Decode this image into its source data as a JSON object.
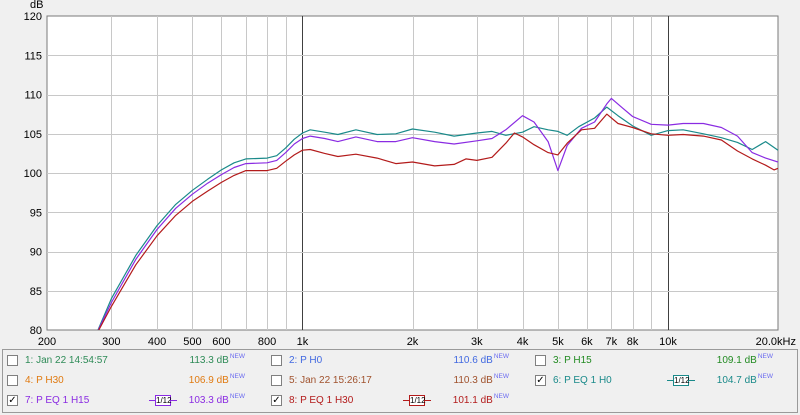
{
  "chart_data": {
    "type": "line",
    "ylabel": "dB",
    "x_scale": "log",
    "x_range": [
      200,
      20000
    ],
    "y_range": [
      80,
      120
    ],
    "grid": true,
    "x_ticks": [
      {
        "v": 200,
        "label": "200"
      },
      {
        "v": 300,
        "label": "300"
      },
      {
        "v": 400,
        "label": "400"
      },
      {
        "v": 500,
        "label": "500"
      },
      {
        "v": 600,
        "label": "600"
      },
      {
        "v": 800,
        "label": "800"
      },
      {
        "v": 1000,
        "label": "1k"
      },
      {
        "v": 2000,
        "label": "2k"
      },
      {
        "v": 3000,
        "label": "3k"
      },
      {
        "v": 4000,
        "label": "4k"
      },
      {
        "v": 5000,
        "label": "5k"
      },
      {
        "v": 6000,
        "label": "6k"
      },
      {
        "v": 7000,
        "label": "7k"
      },
      {
        "v": 8000,
        "label": "8k"
      },
      {
        "v": 10000,
        "label": "10k"
      },
      {
        "v": 20000,
        "label": "20.0kHz"
      }
    ],
    "y_ticks": [
      80,
      85,
      90,
      95,
      100,
      105,
      110,
      115,
      120
    ],
    "series": [
      {
        "name": "P EQ 1 H0",
        "color": "#1a8a8a",
        "points": [
          [
            270,
            79
          ],
          [
            300,
            84
          ],
          [
            350,
            89.5
          ],
          [
            400,
            93.3
          ],
          [
            450,
            96
          ],
          [
            500,
            97.8
          ],
          [
            550,
            99.2
          ],
          [
            600,
            100.4
          ],
          [
            650,
            101.3
          ],
          [
            700,
            101.8
          ],
          [
            800,
            101.9
          ],
          [
            850,
            102.2
          ],
          [
            900,
            103.2
          ],
          [
            950,
            104.3
          ],
          [
            1000,
            105.1
          ],
          [
            1050,
            105.5
          ],
          [
            1150,
            105.2
          ],
          [
            1250,
            104.9
          ],
          [
            1400,
            105.5
          ],
          [
            1600,
            104.9
          ],
          [
            1800,
            105
          ],
          [
            2000,
            105.6
          ],
          [
            2300,
            105.2
          ],
          [
            2600,
            104.7
          ],
          [
            3000,
            105.1
          ],
          [
            3300,
            105.3
          ],
          [
            3600,
            104.8
          ],
          [
            4000,
            105.2
          ],
          [
            4300,
            105.9
          ],
          [
            4700,
            105.5
          ],
          [
            5000,
            105.3
          ],
          [
            5300,
            104.8
          ],
          [
            5700,
            105.9
          ],
          [
            6300,
            107
          ],
          [
            6800,
            108.4
          ],
          [
            7300,
            107.3
          ],
          [
            8000,
            106
          ],
          [
            9000,
            104.8
          ],
          [
            10000,
            105.4
          ],
          [
            11000,
            105.5
          ],
          [
            12500,
            105
          ],
          [
            14000,
            104.5
          ],
          [
            15500,
            103.9
          ],
          [
            17000,
            103
          ],
          [
            18500,
            104
          ],
          [
            20000,
            102.9
          ]
        ]
      },
      {
        "name": "P EQ 1 H15",
        "color": "#8a2be2",
        "points": [
          [
            270,
            79
          ],
          [
            300,
            83.5
          ],
          [
            350,
            89
          ],
          [
            400,
            92.8
          ],
          [
            450,
            95.5
          ],
          [
            500,
            97.3
          ],
          [
            550,
            98.7
          ],
          [
            600,
            99.8
          ],
          [
            650,
            100.7
          ],
          [
            700,
            101.2
          ],
          [
            800,
            101.3
          ],
          [
            850,
            101.6
          ],
          [
            900,
            102.6
          ],
          [
            950,
            103.7
          ],
          [
            1000,
            104.4
          ],
          [
            1050,
            104.7
          ],
          [
            1150,
            104.4
          ],
          [
            1250,
            104
          ],
          [
            1400,
            104.6
          ],
          [
            1600,
            104
          ],
          [
            1800,
            104
          ],
          [
            2000,
            104.5
          ],
          [
            2300,
            104
          ],
          [
            2600,
            103.7
          ],
          [
            3000,
            104.1
          ],
          [
            3300,
            104.4
          ],
          [
            3600,
            105.5
          ],
          [
            4000,
            107.3
          ],
          [
            4300,
            106.5
          ],
          [
            4700,
            104
          ],
          [
            5000,
            100.3
          ],
          [
            5300,
            103.5
          ],
          [
            5800,
            105.7
          ],
          [
            6300,
            106.5
          ],
          [
            6800,
            108.8
          ],
          [
            7000,
            109.5
          ],
          [
            7500,
            108.3
          ],
          [
            8000,
            107.2
          ],
          [
            9000,
            106.2
          ],
          [
            10000,
            106.1
          ],
          [
            11000,
            106.3
          ],
          [
            12500,
            106.3
          ],
          [
            14000,
            105.8
          ],
          [
            15500,
            104.7
          ],
          [
            17000,
            102.6
          ],
          [
            18500,
            101.9
          ],
          [
            20000,
            101.4
          ]
        ]
      },
      {
        "name": "P EQ 1 H30",
        "color": "#b31b1b",
        "points": [
          [
            270,
            79
          ],
          [
            300,
            83
          ],
          [
            350,
            88.3
          ],
          [
            400,
            92
          ],
          [
            450,
            94.6
          ],
          [
            500,
            96.4
          ],
          [
            550,
            97.7
          ],
          [
            600,
            98.8
          ],
          [
            650,
            99.7
          ],
          [
            700,
            100.3
          ],
          [
            800,
            100.3
          ],
          [
            850,
            100.6
          ],
          [
            900,
            101.5
          ],
          [
            950,
            102.3
          ],
          [
            1000,
            102.9
          ],
          [
            1050,
            103
          ],
          [
            1150,
            102.5
          ],
          [
            1250,
            102.1
          ],
          [
            1400,
            102.4
          ],
          [
            1600,
            101.9
          ],
          [
            1800,
            101.2
          ],
          [
            2000,
            101.4
          ],
          [
            2300,
            100.9
          ],
          [
            2600,
            101.1
          ],
          [
            2800,
            101.8
          ],
          [
            3000,
            101.6
          ],
          [
            3300,
            102
          ],
          [
            3600,
            103.8
          ],
          [
            3800,
            105.1
          ],
          [
            4000,
            104.6
          ],
          [
            4300,
            103.6
          ],
          [
            4700,
            102.6
          ],
          [
            5000,
            102.3
          ],
          [
            5300,
            103.8
          ],
          [
            5800,
            105.5
          ],
          [
            6300,
            105.7
          ],
          [
            6800,
            107.5
          ],
          [
            7300,
            106.3
          ],
          [
            8000,
            105.8
          ],
          [
            9000,
            105
          ],
          [
            10000,
            104.8
          ],
          [
            11000,
            104.9
          ],
          [
            12500,
            104.7
          ],
          [
            14000,
            104.2
          ],
          [
            15500,
            102.8
          ],
          [
            17000,
            101.8
          ],
          [
            18500,
            101
          ],
          [
            19500,
            100.4
          ],
          [
            20000,
            100.6
          ]
        ]
      }
    ]
  },
  "legend": [
    {
      "label": "1: Jan 22 14:54:57",
      "value": "113.3 dB",
      "color": "#2e8b57",
      "checked": false
    },
    {
      "label": "2: P H0",
      "value": "110.6 dB",
      "color": "#4169e1",
      "checked": false
    },
    {
      "label": "3: P H15",
      "value": "109.1 dB",
      "color": "#228b22",
      "checked": false
    },
    {
      "label": "4: P H30",
      "value": "106.9 dB",
      "color": "#e07a10",
      "checked": false
    },
    {
      "label": "5: Jan 22 15:26:17",
      "value": "110.3 dB",
      "color": "#a0522d",
      "checked": false
    },
    {
      "label": "6: P EQ 1 H0",
      "value": "104.7 dB",
      "color": "#1a8a8a",
      "checked": true,
      "smoothing": "1/12"
    },
    {
      "label": "7: P EQ 1 H15",
      "value": "103.3 dB",
      "color": "#8a2be2",
      "checked": true,
      "smoothing": "1/12"
    },
    {
      "label": "8: P EQ 1 H30",
      "value": "101.1 dB",
      "color": "#b31b1b",
      "checked": true,
      "smoothing": "1/12"
    }
  ],
  "value_badge": "NEW",
  "check_mark": "✓"
}
